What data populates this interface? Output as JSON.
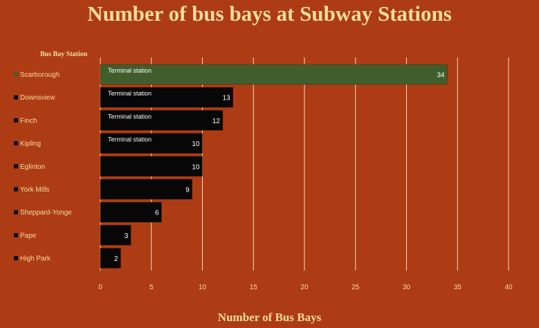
{
  "chart_data": {
    "type": "bar",
    "orientation": "horizontal",
    "title": "Number of bus bays at Subway Stations",
    "xlabel": "Number of Bus Bays",
    "ylabel": "Bus Bay Station",
    "categories": [
      "Scarborough",
      "Downsview",
      "Finch",
      "Kipling",
      "Eglinton",
      "York Mills",
      "Sheppard-Yonge",
      "Pape",
      "High Park"
    ],
    "values": [
      34,
      13,
      12,
      10,
      10,
      9,
      6,
      3,
      2
    ],
    "annotations": [
      "Terminal station",
      "Terminal station",
      "Terminal station",
      "Terminal station",
      "",
      "",
      "",
      "",
      ""
    ],
    "bar_colors": [
      "#3f5e2c",
      "#070707",
      "#070707",
      "#070707",
      "#070707",
      "#070707",
      "#070707",
      "#070707",
      "#070707"
    ],
    "xlim": [
      0,
      40
    ],
    "xticks": [
      0,
      5,
      10,
      15,
      20,
      25,
      30,
      35,
      40
    ],
    "grid": true,
    "colors": {
      "background": "#ad3c14",
      "text": "#f6dca0",
      "gridline": "#f3dcc0"
    }
  }
}
